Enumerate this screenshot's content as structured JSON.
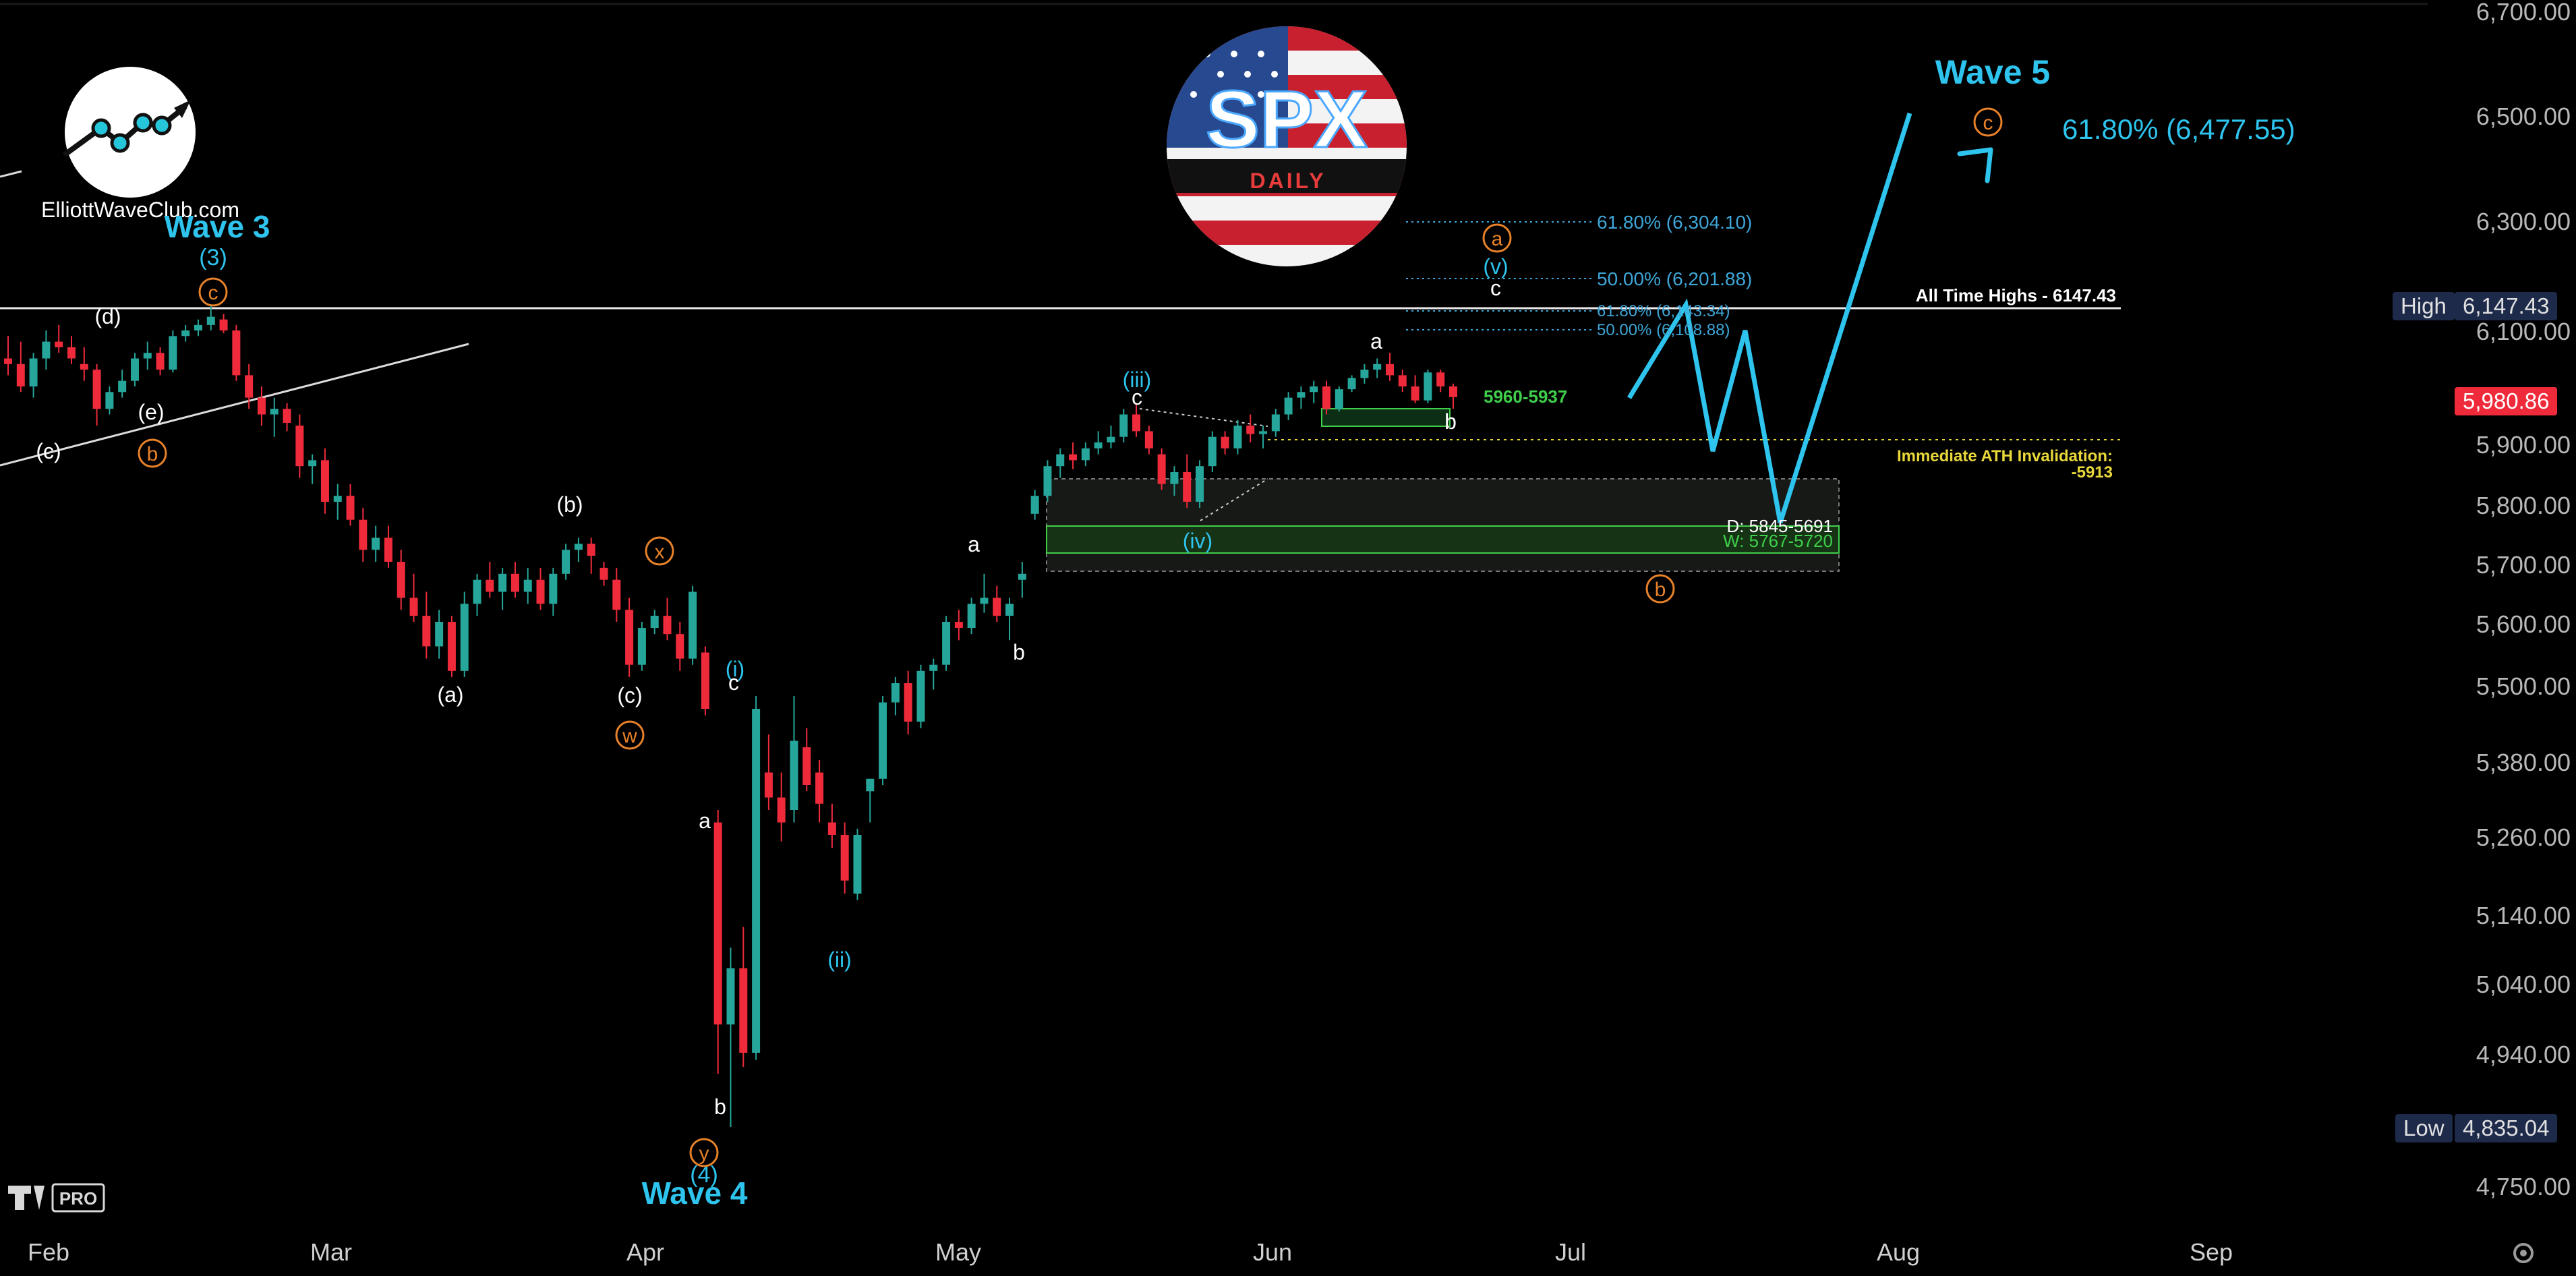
{
  "brand": {
    "site": "ElliottWaveClub.com",
    "logo_title": "SPX",
    "logo_subtitle": "DAILY",
    "platform_badge": "PRO"
  },
  "y_axis": {
    "ticks": [
      "6,700.00",
      "6,500.00",
      "6,300.00",
      "6,100.00",
      "5,900.00",
      "5,800.00",
      "5,700.00",
      "5,600.00",
      "5,500.00",
      "5,380.00",
      "5,260.00",
      "5,140.00",
      "5,040.00",
      "4,940.00",
      "4,750.00"
    ],
    "high_label": "High",
    "high_value": "6,147.43",
    "current_value": "5,980.86",
    "low_label": "Low",
    "low_value": "4,835.04"
  },
  "x_axis": {
    "ticks": [
      "Feb",
      "Mar",
      "Apr",
      "May",
      "Jun",
      "Jul",
      "Aug",
      "Sep"
    ]
  },
  "levels": {
    "ath": "All Time Highs - 6147.43",
    "invalidation_line1": "Immediate ATH Invalidation:",
    "invalidation_line2": "-5913",
    "support_zone": "5960-5937",
    "zone_d": "D: 5845-5691",
    "zone_w": "W: 5767-5720",
    "fib_top_618": "61.80% (6,304.10)",
    "fib_top_500": "50.00% (6,201.88)",
    "fib_mid_618": "61.80% (6,143.34)",
    "fib_mid_500": "50.00% (6,108.88)",
    "target": "61.80% (6,477.55)"
  },
  "waves": {
    "wave3": "Wave 3",
    "wave3_num": "(3)",
    "wave4": "Wave 4",
    "wave4_num": "(4)",
    "wave5": "Wave 5",
    "d": "(d)",
    "e": "(e)",
    "c": "(c)",
    "b_paren": "(b)",
    "a_paren": "(a)",
    "c_paren": "(c)",
    "x": "x",
    "w": "w",
    "y": "y",
    "b_circ": "b",
    "c_circ": "c",
    "a_circ": "a",
    "i": "(i)",
    "ii": "(ii)",
    "iii": "(iii)",
    "iv": "(iv)",
    "v": "(v)",
    "a": "a",
    "b": "b",
    "c_small": "c"
  },
  "colors": {
    "bull": "#26a69a",
    "bear": "#ef2b3b",
    "wave_cyan": "#2ec4ee",
    "orange": "#e8822a",
    "fib_blue": "#3ea6d8",
    "yellow": "#e8d83a",
    "green": "#3fcf4a"
  },
  "chart_data": {
    "type": "candlestick",
    "title": "SPX DAILY",
    "ylim": [
      4700,
      6780
    ],
    "series": [
      {
        "name": "SPX",
        "ohlc": [
          [
            6050,
            6090,
            6020,
            6040
          ],
          [
            6040,
            6080,
            5990,
            6000
          ],
          [
            6000,
            6060,
            5980,
            6050
          ],
          [
            6050,
            6100,
            6030,
            6080
          ],
          [
            6080,
            6110,
            6060,
            6070
          ],
          [
            6070,
            6090,
            6040,
            6050
          ],
          [
            6040,
            6070,
            6010,
            6030
          ],
          [
            6030,
            6040,
            5930,
            5960
          ],
          [
            5960,
            6000,
            5950,
            5990
          ],
          [
            5990,
            6030,
            5980,
            6010
          ],
          [
            6010,
            6060,
            6000,
            6050
          ],
          [
            6050,
            6080,
            6030,
            6060
          ],
          [
            6060,
            6070,
            6020,
            6030
          ],
          [
            6030,
            6100,
            6025,
            6090
          ],
          [
            6090,
            6110,
            6080,
            6100
          ],
          [
            6100,
            6120,
            6090,
            6110
          ],
          [
            6110,
            6147,
            6100,
            6125
          ],
          [
            6120,
            6130,
            6095,
            6100
          ],
          [
            6100,
            6110,
            6010,
            6020
          ],
          [
            6020,
            6040,
            5960,
            5980
          ],
          [
            5980,
            6000,
            5930,
            5950
          ],
          [
            5950,
            5980,
            5910,
            5960
          ],
          [
            5960,
            5970,
            5920,
            5935
          ],
          [
            5930,
            5950,
            5840,
            5860
          ],
          [
            5860,
            5880,
            5830,
            5870
          ],
          [
            5870,
            5890,
            5780,
            5800
          ],
          [
            5800,
            5830,
            5770,
            5810
          ],
          [
            5810,
            5830,
            5760,
            5770
          ],
          [
            5770,
            5790,
            5700,
            5720
          ],
          [
            5720,
            5760,
            5700,
            5740
          ],
          [
            5740,
            5760,
            5690,
            5700
          ],
          [
            5700,
            5720,
            5620,
            5640
          ],
          [
            5640,
            5680,
            5600,
            5610
          ],
          [
            5610,
            5650,
            5540,
            5560
          ],
          [
            5560,
            5620,
            5540,
            5600
          ],
          [
            5600,
            5610,
            5510,
            5520
          ],
          [
            5520,
            5650,
            5510,
            5630
          ],
          [
            5630,
            5680,
            5610,
            5670
          ],
          [
            5670,
            5700,
            5640,
            5650
          ],
          [
            5650,
            5690,
            5620,
            5680
          ],
          [
            5680,
            5700,
            5640,
            5650
          ],
          [
            5650,
            5690,
            5630,
            5670
          ],
          [
            5670,
            5690,
            5620,
            5630
          ],
          [
            5630,
            5690,
            5610,
            5680
          ],
          [
            5680,
            5730,
            5670,
            5720
          ],
          [
            5720,
            5740,
            5700,
            5730
          ],
          [
            5730,
            5740,
            5680,
            5710
          ],
          [
            5690,
            5700,
            5660,
            5670
          ],
          [
            5670,
            5690,
            5600,
            5620
          ],
          [
            5620,
            5640,
            5510,
            5530
          ],
          [
            5530,
            5600,
            5520,
            5590
          ],
          [
            5590,
            5620,
            5580,
            5610
          ],
          [
            5610,
            5640,
            5570,
            5580
          ],
          [
            5580,
            5600,
            5520,
            5540
          ],
          [
            5540,
            5660,
            5530,
            5650
          ],
          [
            5550,
            5560,
            5450,
            5460
          ],
          [
            5280,
            5300,
            4910,
            4980
          ],
          [
            4980,
            5090,
            4835,
            5060
          ],
          [
            5060,
            5120,
            4920,
            4940
          ],
          [
            4940,
            5480,
            4930,
            5460
          ],
          [
            5360,
            5420,
            5300,
            5320
          ],
          [
            5320,
            5360,
            5250,
            5280
          ],
          [
            5300,
            5480,
            5280,
            5410
          ],
          [
            5400,
            5430,
            5330,
            5340
          ],
          [
            5360,
            5380,
            5280,
            5310
          ],
          [
            5280,
            5310,
            5240,
            5260
          ],
          [
            5260,
            5280,
            5170,
            5190
          ],
          [
            5170,
            5270,
            5160,
            5260
          ],
          [
            5330,
            5350,
            5280,
            5350
          ],
          [
            5350,
            5480,
            5340,
            5470
          ],
          [
            5470,
            5510,
            5450,
            5500
          ],
          [
            5500,
            5520,
            5420,
            5440
          ],
          [
            5440,
            5530,
            5430,
            5520
          ],
          [
            5520,
            5540,
            5490,
            5530
          ],
          [
            5530,
            5610,
            5520,
            5600
          ],
          [
            5600,
            5620,
            5570,
            5590
          ],
          [
            5590,
            5640,
            5580,
            5630
          ],
          [
            5630,
            5680,
            5615,
            5640
          ],
          [
            5640,
            5660,
            5600,
            5610
          ],
          [
            5610,
            5640,
            5570,
            5630
          ],
          [
            5670,
            5700,
            5640,
            5680
          ],
          [
            5780,
            5820,
            5770,
            5810
          ],
          [
            5810,
            5870,
            5800,
            5860
          ],
          [
            5860,
            5890,
            5840,
            5880
          ],
          [
            5880,
            5900,
            5855,
            5870
          ],
          [
            5870,
            5900,
            5860,
            5890
          ],
          [
            5890,
            5920,
            5880,
            5900
          ],
          [
            5900,
            5930,
            5890,
            5910
          ],
          [
            5910,
            5960,
            5900,
            5950
          ],
          [
            5950,
            5970,
            5910,
            5920
          ],
          [
            5920,
            5930,
            5880,
            5890
          ],
          [
            5880,
            5890,
            5820,
            5830
          ],
          [
            5830,
            5860,
            5810,
            5850
          ],
          [
            5850,
            5880,
            5790,
            5800
          ],
          [
            5800,
            5870,
            5790,
            5860
          ],
          [
            5860,
            5920,
            5850,
            5910
          ],
          [
            5910,
            5920,
            5880,
            5890
          ],
          [
            5890,
            5940,
            5880,
            5930
          ],
          [
            5930,
            5950,
            5900,
            5915
          ],
          [
            5915,
            5930,
            5890,
            5920
          ],
          [
            5920,
            5960,
            5910,
            5950
          ],
          [
            5950,
            5990,
            5940,
            5980
          ],
          [
            5980,
            6000,
            5960,
            5990
          ],
          [
            5990,
            6010,
            5970,
            6000
          ],
          [
            6000,
            6010,
            5950,
            5960
          ],
          [
            5960,
            6000,
            5955,
            5995
          ],
          [
            5995,
            6020,
            5990,
            6015
          ],
          [
            6015,
            6040,
            6005,
            6030
          ],
          [
            6030,
            6050,
            6015,
            6040
          ],
          [
            6040,
            6060,
            6010,
            6020
          ],
          [
            6020,
            6030,
            5990,
            6000
          ],
          [
            6000,
            6020,
            5970,
            5975
          ],
          [
            5975,
            6030,
            5970,
            6025
          ],
          [
            6025,
            6030,
            5990,
            6000
          ],
          [
            6000,
            6005,
            5960,
            5981
          ]
        ]
      }
    ],
    "projection": [
      [
        6040,
        5980
      ],
      [
        6250,
        6147
      ],
      [
        6350,
        5885
      ],
      [
        6470,
        6100
      ],
      [
        6600,
        5765
      ],
      [
        7080,
        6500
      ]
    ],
    "target_projection": "Wave 5 61.80% (6,477.55)"
  }
}
